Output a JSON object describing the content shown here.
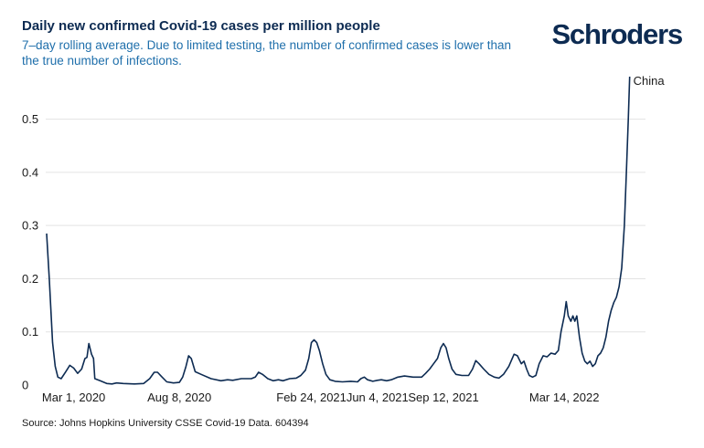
{
  "header": {
    "title": "Daily new confirmed Covid-19 cases per million people",
    "subtitle": "7–day rolling average. Due to limited testing, the number of confirmed cases is lower than the true number of infections.",
    "logo": "Schroders"
  },
  "footer": {
    "source": "Source: Johns Hopkins University CSSE Covid-19 Data. 604394"
  },
  "colors": {
    "line": "#0d2b52",
    "grid": "#e3e3e3",
    "title": "#0d2b52",
    "subtitle": "#1f6fab"
  },
  "chart_data": {
    "type": "line",
    "title": "Daily new confirmed Covid-19 cases per million people",
    "subtitle": "7–day rolling average. Due to limited testing, the number of confirmed cases is lower than the true number of infections.",
    "xlabel": "",
    "ylabel": "",
    "ylim": [
      0,
      0.58
    ],
    "yticks": [
      0,
      0.1,
      0.2,
      0.3,
      0.4,
      0.5
    ],
    "ytick_labels": [
      "0",
      "0.1",
      "0.2",
      "0.3",
      "0.4",
      "0.5"
    ],
    "grid": true,
    "xlim": [
      "2020-01-20",
      "2022-07-15"
    ],
    "xticks": [
      {
        "date": "2020-03-01",
        "label": "Mar 1, 2020"
      },
      {
        "date": "2020-08-08",
        "label": "Aug 8, 2020"
      },
      {
        "date": "2021-02-24",
        "label": "Feb 24, 2021"
      },
      {
        "date": "2021-06-04",
        "label": "Jun 4, 2021"
      },
      {
        "date": "2021-09-12",
        "label": "Sep 12, 2021"
      },
      {
        "date": "2022-03-14",
        "label": "Mar 14, 2022"
      }
    ],
    "series": [
      {
        "name": "China",
        "points": [
          [
            "2020-01-20",
            0.285
          ],
          [
            "2020-01-24",
            0.2
          ],
          [
            "2020-01-29",
            0.08
          ],
          [
            "2020-02-02",
            0.035
          ],
          [
            "2020-02-06",
            0.015
          ],
          [
            "2020-02-11",
            0.012
          ],
          [
            "2020-02-18",
            0.025
          ],
          [
            "2020-02-24",
            0.037
          ],
          [
            "2020-03-01",
            0.032
          ],
          [
            "2020-03-07",
            0.022
          ],
          [
            "2020-03-13",
            0.03
          ],
          [
            "2020-03-18",
            0.05
          ],
          [
            "2020-03-21",
            0.052
          ],
          [
            "2020-03-24",
            0.078
          ],
          [
            "2020-03-28",
            0.058
          ],
          [
            "2020-03-31",
            0.05
          ],
          [
            "2020-04-02",
            0.012
          ],
          [
            "2020-04-10",
            0.008
          ],
          [
            "2020-04-20",
            0.003
          ],
          [
            "2020-04-28",
            0.002
          ],
          [
            "2020-05-05",
            0.004
          ],
          [
            "2020-05-15",
            0.003
          ],
          [
            "2020-06-01",
            0.002
          ],
          [
            "2020-06-15",
            0.003
          ],
          [
            "2020-06-24",
            0.012
          ],
          [
            "2020-07-01",
            0.024
          ],
          [
            "2020-07-06",
            0.024
          ],
          [
            "2020-07-12",
            0.016
          ],
          [
            "2020-07-20",
            0.006
          ],
          [
            "2020-07-30",
            0.004
          ],
          [
            "2020-08-08",
            0.005
          ],
          [
            "2020-08-13",
            0.015
          ],
          [
            "2020-08-18",
            0.035
          ],
          [
            "2020-08-22",
            0.055
          ],
          [
            "2020-08-26",
            0.05
          ],
          [
            "2020-09-01",
            0.025
          ],
          [
            "2020-09-10",
            0.02
          ],
          [
            "2020-09-25",
            0.012
          ],
          [
            "2020-10-10",
            0.008
          ],
          [
            "2020-10-20",
            0.01
          ],
          [
            "2020-10-28",
            0.009
          ],
          [
            "2020-11-10",
            0.012
          ],
          [
            "2020-11-25",
            0.012
          ],
          [
            "2020-12-01",
            0.015
          ],
          [
            "2020-12-06",
            0.024
          ],
          [
            "2020-12-12",
            0.02
          ],
          [
            "2020-12-20",
            0.012
          ],
          [
            "2020-12-28",
            0.008
          ],
          [
            "2021-01-05",
            0.01
          ],
          [
            "2021-01-12",
            0.008
          ],
          [
            "2021-01-22",
            0.012
          ],
          [
            "2021-02-01",
            0.013
          ],
          [
            "2021-02-08",
            0.018
          ],
          [
            "2021-02-15",
            0.028
          ],
          [
            "2021-02-20",
            0.05
          ],
          [
            "2021-02-24",
            0.08
          ],
          [
            "2021-02-28",
            0.085
          ],
          [
            "2021-03-04",
            0.08
          ],
          [
            "2021-03-08",
            0.065
          ],
          [
            "2021-03-13",
            0.04
          ],
          [
            "2021-03-18",
            0.02
          ],
          [
            "2021-03-24",
            0.01
          ],
          [
            "2021-04-01",
            0.007
          ],
          [
            "2021-04-12",
            0.006
          ],
          [
            "2021-04-25",
            0.007
          ],
          [
            "2021-05-05",
            0.006
          ],
          [
            "2021-05-10",
            0.012
          ],
          [
            "2021-05-15",
            0.015
          ],
          [
            "2021-05-20",
            0.01
          ],
          [
            "2021-05-28",
            0.007
          ],
          [
            "2021-06-04",
            0.009
          ],
          [
            "2021-06-10",
            0.01
          ],
          [
            "2021-06-18",
            0.008
          ],
          [
            "2021-06-25",
            0.01
          ],
          [
            "2021-07-05",
            0.015
          ],
          [
            "2021-07-15",
            0.017
          ],
          [
            "2021-07-28",
            0.015
          ],
          [
            "2021-08-10",
            0.015
          ],
          [
            "2021-08-16",
            0.022
          ],
          [
            "2021-08-22",
            0.03
          ],
          [
            "2021-08-28",
            0.04
          ],
          [
            "2021-09-03",
            0.05
          ],
          [
            "2021-09-08",
            0.07
          ],
          [
            "2021-09-12",
            0.078
          ],
          [
            "2021-09-16",
            0.07
          ],
          [
            "2021-09-20",
            0.05
          ],
          [
            "2021-09-25",
            0.03
          ],
          [
            "2021-10-01",
            0.02
          ],
          [
            "2021-10-10",
            0.018
          ],
          [
            "2021-10-20",
            0.018
          ],
          [
            "2021-10-26",
            0.03
          ],
          [
            "2021-10-31",
            0.046
          ],
          [
            "2021-11-05",
            0.04
          ],
          [
            "2021-11-12",
            0.03
          ],
          [
            "2021-11-20",
            0.02
          ],
          [
            "2021-11-28",
            0.015
          ],
          [
            "2021-12-05",
            0.013
          ],
          [
            "2021-12-12",
            0.02
          ],
          [
            "2021-12-20",
            0.035
          ],
          [
            "2021-12-28",
            0.058
          ],
          [
            "2022-01-02",
            0.055
          ],
          [
            "2022-01-08",
            0.04
          ],
          [
            "2022-01-12",
            0.045
          ],
          [
            "2022-01-16",
            0.03
          ],
          [
            "2022-01-20",
            0.018
          ],
          [
            "2022-01-25",
            0.015
          ],
          [
            "2022-01-30",
            0.018
          ],
          [
            "2022-02-04",
            0.04
          ],
          [
            "2022-02-10",
            0.055
          ],
          [
            "2022-02-16",
            0.053
          ],
          [
            "2022-02-22",
            0.06
          ],
          [
            "2022-02-28",
            0.058
          ],
          [
            "2022-03-05",
            0.065
          ],
          [
            "2022-03-09",
            0.1
          ],
          [
            "2022-03-14",
            0.13
          ],
          [
            "2022-03-17",
            0.157
          ],
          [
            "2022-03-20",
            0.13
          ],
          [
            "2022-03-24",
            0.12
          ],
          [
            "2022-03-27",
            0.13
          ],
          [
            "2022-03-30",
            0.12
          ],
          [
            "2022-04-02",
            0.13
          ],
          [
            "2022-04-06",
            0.09
          ],
          [
            "2022-04-10",
            0.06
          ],
          [
            "2022-04-14",
            0.045
          ],
          [
            "2022-04-18",
            0.04
          ],
          [
            "2022-04-22",
            0.045
          ],
          [
            "2022-04-26",
            0.035
          ],
          [
            "2022-04-30",
            0.04
          ],
          [
            "2022-05-04",
            0.055
          ],
          [
            "2022-05-08",
            0.06
          ],
          [
            "2022-05-12",
            0.07
          ],
          [
            "2022-05-16",
            0.09
          ],
          [
            "2022-05-20",
            0.12
          ],
          [
            "2022-05-24",
            0.14
          ],
          [
            "2022-05-28",
            0.155
          ],
          [
            "2022-06-01",
            0.165
          ],
          [
            "2022-06-05",
            0.185
          ],
          [
            "2022-06-09",
            0.22
          ],
          [
            "2022-06-13",
            0.3
          ],
          [
            "2022-06-16",
            0.4
          ],
          [
            "2022-06-19",
            0.5
          ],
          [
            "2022-06-21",
            0.58
          ]
        ]
      }
    ]
  }
}
